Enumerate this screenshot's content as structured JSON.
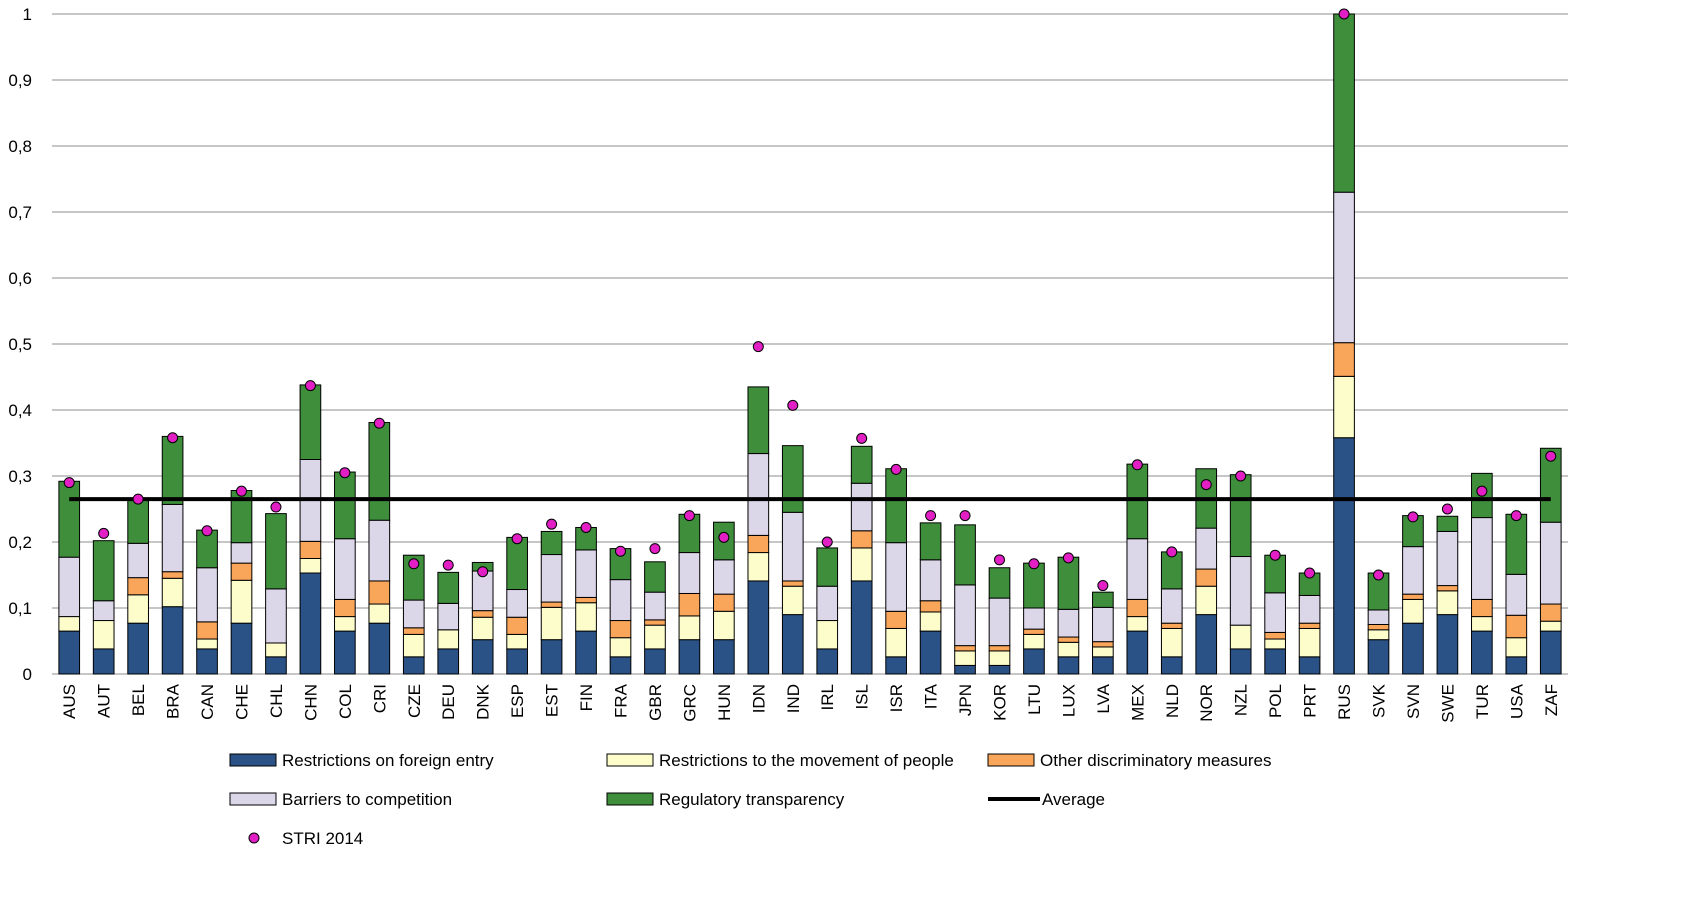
{
  "chart_data": {
    "type": "bar",
    "stacked": true,
    "ylim": [
      0,
      1
    ],
    "yticks": [
      "0",
      "0,1",
      "0,2",
      "0,3",
      "0,4",
      "0,5",
      "0,6",
      "0,7",
      "0,8",
      "0,9",
      "1"
    ],
    "grid": true,
    "legend_position": "bottom",
    "categories": [
      "AUS",
      "AUT",
      "BEL",
      "BRA",
      "CAN",
      "CHE",
      "CHL",
      "CHN",
      "COL",
      "CRI",
      "CZE",
      "DEU",
      "DNK",
      "ESP",
      "EST",
      "FIN",
      "FRA",
      "GBR",
      "GRC",
      "HUN",
      "IDN",
      "IND",
      "IRL",
      "ISL",
      "ISR",
      "ITA",
      "JPN",
      "KOR",
      "LTU",
      "LUX",
      "LVA",
      "MEX",
      "NLD",
      "NOR",
      "NZL",
      "POL",
      "PRT",
      "RUS",
      "SVK",
      "SVN",
      "SWE",
      "TUR",
      "USA",
      "ZAF"
    ],
    "series": [
      {
        "name": "Restrictions on foreign entry",
        "color": "#2b5287",
        "values": [
          0.065,
          0.038,
          0.077,
          0.102,
          0.038,
          0.077,
          0.026,
          0.153,
          0.065,
          0.077,
          0.026,
          0.038,
          0.052,
          0.038,
          0.052,
          0.065,
          0.026,
          0.038,
          0.052,
          0.052,
          0.141,
          0.09,
          0.038,
          0.141,
          0.026,
          0.065,
          0.013,
          0.013,
          0.038,
          0.026,
          0.026,
          0.065,
          0.026,
          0.09,
          0.038,
          0.038,
          0.026,
          0.358,
          0.052,
          0.077,
          0.09,
          0.065,
          0.026,
          0.065
        ]
      },
      {
        "name": "Restrictions to the movement of people",
        "color": "#fdfdcc",
        "values": [
          0.022,
          0.043,
          0.043,
          0.043,
          0.015,
          0.065,
          0.021,
          0.022,
          0.022,
          0.029,
          0.034,
          0.029,
          0.034,
          0.022,
          0.049,
          0.043,
          0.029,
          0.036,
          0.036,
          0.043,
          0.043,
          0.043,
          0.043,
          0.05,
          0.043,
          0.029,
          0.022,
          0.022,
          0.022,
          0.022,
          0.015,
          0.022,
          0.043,
          0.043,
          0.036,
          0.015,
          0.043,
          0.093,
          0.015,
          0.036,
          0.036,
          0.022,
          0.029,
          0.015
        ]
      },
      {
        "name": "Other discriminatory measures",
        "color": "#f9a55a",
        "values": [
          0,
          0,
          0.026,
          0.01,
          0.026,
          0.026,
          0,
          0.026,
          0.026,
          0.035,
          0.01,
          0,
          0.01,
          0.026,
          0.008,
          0.008,
          0.026,
          0.008,
          0.034,
          0.026,
          0.026,
          0.008,
          0,
          0.026,
          0.026,
          0.017,
          0.008,
          0.008,
          0.008,
          0.008,
          0.008,
          0.026,
          0.008,
          0.026,
          0,
          0.01,
          0.008,
          0.051,
          0.008,
          0.008,
          0.008,
          0.026,
          0.034,
          0.026
        ]
      },
      {
        "name": "Barriers to competition",
        "color": "#dcd6e9",
        "values": [
          0.09,
          0.03,
          0.052,
          0.102,
          0.082,
          0.031,
          0.082,
          0.124,
          0.092,
          0.092,
          0.042,
          0.04,
          0.06,
          0.042,
          0.072,
          0.072,
          0.062,
          0.042,
          0.062,
          0.052,
          0.124,
          0.104,
          0.052,
          0.072,
          0.104,
          0.062,
          0.092,
          0.072,
          0.032,
          0.042,
          0.052,
          0.092,
          0.052,
          0.062,
          0.104,
          0.06,
          0.042,
          0.228,
          0.022,
          0.072,
          0.082,
          0.124,
          0.062,
          0.124
        ]
      },
      {
        "name": "Regulatory transparency",
        "color": "#3e8e3b",
        "values": [
          0.115,
          0.091,
          0.067,
          0.103,
          0.057,
          0.079,
          0.114,
          0.113,
          0.101,
          0.148,
          0.068,
          0.047,
          0.013,
          0.079,
          0.035,
          0.034,
          0.047,
          0.046,
          0.058,
          0.057,
          0.101,
          0.101,
          0.058,
          0.056,
          0.112,
          0.056,
          0.091,
          0.046,
          0.068,
          0.079,
          0.023,
          0.113,
          0.056,
          0.09,
          0.124,
          0.057,
          0.034,
          0.27,
          0.056,
          0.047,
          0.023,
          0.067,
          0.091,
          0.112
        ]
      }
    ],
    "average": {
      "name": "Average",
      "value": 0.265,
      "color": "#000000"
    },
    "markers": {
      "name": "STRI 2014",
      "color": "#e21fc4",
      "values": [
        0.29,
        0.213,
        0.265,
        0.358,
        0.217,
        0.277,
        0.253,
        0.437,
        0.305,
        0.38,
        0.167,
        0.165,
        0.155,
        0.205,
        0.227,
        0.222,
        0.186,
        0.19,
        0.24,
        0.207,
        0.496,
        0.407,
        0.2,
        0.357,
        0.31,
        0.24,
        0.24,
        0.173,
        0.167,
        0.176,
        0.134,
        0.317,
        0.185,
        0.287,
        0.3,
        0.18,
        0.153,
        1.0,
        0.15,
        0.238,
        0.25,
        0.277,
        0.24,
        0.33
      ]
    }
  }
}
